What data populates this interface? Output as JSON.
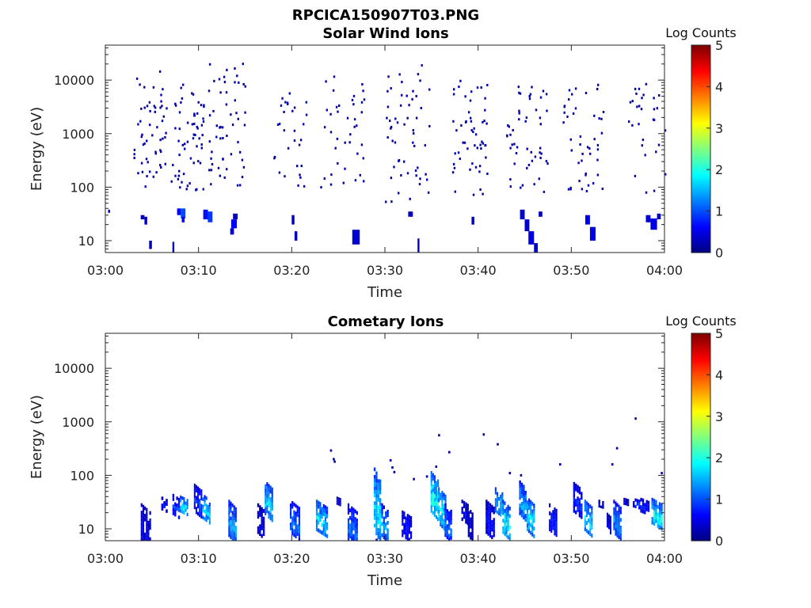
{
  "figure": {
    "title": "RPCICA150907T03.PNG"
  },
  "colormap": {
    "name": "jet",
    "stops": [
      "#00007f",
      "#0000ff",
      "#007fff",
      "#00ffff",
      "#7fff7f",
      "#ffff00",
      "#ff7f00",
      "#ff0000",
      "#7f0000"
    ]
  },
  "chart_data": [
    {
      "type": "heatmap",
      "title": "Solar Wind Ions",
      "xlabel": "Time",
      "ylabel": "Energy (eV)",
      "x_ticks": [
        "03:00",
        "03:10",
        "03:20",
        "03:30",
        "03:40",
        "03:50",
        "04:00"
      ],
      "x_range_minutes": [
        0,
        60
      ],
      "y_scale": "log",
      "y_range": [
        6,
        45000
      ],
      "y_ticks": [
        {
          "value": 10,
          "label": "10"
        },
        {
          "value": 100,
          "label": "100"
        },
        {
          "value": 1000,
          "label": "1000"
        },
        {
          "value": 10000,
          "label": "10000"
        }
      ],
      "colorbar": {
        "label": "Log Counts",
        "range": [
          0,
          5
        ],
        "ticks": [
          "0",
          "1",
          "2",
          "3",
          "4",
          "5"
        ]
      },
      "populations": [
        {
          "t": [
            3.0,
            6.5
          ],
          "e": [
            100,
            15000
          ],
          "n": 55,
          "v": [
            0.1,
            0.3
          ]
        },
        {
          "t": [
            7.0,
            10.5
          ],
          "e": [
            80,
            9000
          ],
          "n": 60,
          "v": [
            0.1,
            0.3
          ]
        },
        {
          "t": [
            11.0,
            15.0
          ],
          "e": [
            100,
            25000
          ],
          "n": 55,
          "v": [
            0.1,
            0.3
          ]
        },
        {
          "t": [
            18.0,
            21.5
          ],
          "e": [
            100,
            6000
          ],
          "n": 30,
          "v": [
            0.1,
            0.3
          ]
        },
        {
          "t": [
            23.0,
            28.0
          ],
          "e": [
            100,
            14000
          ],
          "n": 40,
          "v": [
            0.1,
            0.3
          ]
        },
        {
          "t": [
            30.0,
            35.0
          ],
          "e": [
            50,
            25000
          ],
          "n": 55,
          "v": [
            0.1,
            0.3
          ]
        },
        {
          "t": [
            37.0,
            41.0
          ],
          "e": [
            70,
            10000
          ],
          "n": 55,
          "v": [
            0.1,
            0.3
          ]
        },
        {
          "t": [
            43.0,
            47.5
          ],
          "e": [
            80,
            9000
          ],
          "n": 50,
          "v": [
            0.1,
            0.3
          ]
        },
        {
          "t": [
            49.0,
            53.5
          ],
          "e": [
            80,
            9000
          ],
          "n": 45,
          "v": [
            0.1,
            0.3
          ]
        },
        {
          "t": [
            56.0,
            60.0
          ],
          "e": [
            80,
            9000
          ],
          "n": 30,
          "v": [
            0.1,
            0.3
          ]
        }
      ],
      "cells": [
        {
          "t0": 0.3,
          "t1": 0.5,
          "e0": 33,
          "e1": 38,
          "v": 0.2
        },
        {
          "t0": 3.8,
          "t1": 4.2,
          "e0": 25,
          "e1": 30,
          "v": 0.3
        },
        {
          "t0": 4.2,
          "t1": 4.5,
          "e0": 20,
          "e1": 28,
          "v": 0.4
        },
        {
          "t0": 4.7,
          "t1": 5.0,
          "e0": 7,
          "e1": 10,
          "v": 0.3
        },
        {
          "t0": 7.2,
          "t1": 7.4,
          "e0": 5.5,
          "e1": 9.5,
          "v": 0.3
        },
        {
          "t0": 7.7,
          "t1": 8.1,
          "e0": 30,
          "e1": 40,
          "v": 0.6
        },
        {
          "t0": 8.1,
          "t1": 8.6,
          "e0": 26,
          "e1": 40,
          "v": 1.0
        },
        {
          "t0": 8.2,
          "t1": 8.5,
          "e0": 22,
          "e1": 28,
          "v": 0.5
        },
        {
          "t0": 10.5,
          "t1": 11.0,
          "e0": 25,
          "e1": 38,
          "v": 0.7
        },
        {
          "t0": 11.0,
          "t1": 11.5,
          "e0": 22,
          "e1": 35,
          "v": 0.9
        },
        {
          "t0": 13.4,
          "t1": 13.8,
          "e0": 13,
          "e1": 17,
          "v": 0.4
        },
        {
          "t0": 13.5,
          "t1": 14.1,
          "e0": 17,
          "e1": 25,
          "v": 0.6
        },
        {
          "t0": 13.7,
          "t1": 14.2,
          "e0": 25,
          "e1": 32,
          "v": 0.3
        },
        {
          "t0": 20.0,
          "t1": 20.3,
          "e0": 20,
          "e1": 30,
          "v": 0.3
        },
        {
          "t0": 20.3,
          "t1": 20.6,
          "e0": 10,
          "e1": 15,
          "v": 0.3
        },
        {
          "t0": 26.5,
          "t1": 27.3,
          "e0": 8.5,
          "e1": 16,
          "v": 0.4
        },
        {
          "t0": 32.5,
          "t1": 33.0,
          "e0": 28,
          "e1": 35,
          "v": 0.3
        },
        {
          "t0": 33.5,
          "t1": 33.7,
          "e0": 5.5,
          "e1": 11,
          "v": 0.3
        },
        {
          "t0": 39.3,
          "t1": 39.6,
          "e0": 20,
          "e1": 28,
          "v": 0.3
        },
        {
          "t0": 44.5,
          "t1": 45.0,
          "e0": 25,
          "e1": 38,
          "v": 0.4
        },
        {
          "t0": 45.0,
          "t1": 45.5,
          "e0": 15,
          "e1": 25,
          "v": 0.4
        },
        {
          "t0": 45.4,
          "t1": 46.0,
          "e0": 8.5,
          "e1": 15,
          "v": 0.5
        },
        {
          "t0": 46.0,
          "t1": 46.4,
          "e0": 5.5,
          "e1": 9,
          "v": 0.3
        },
        {
          "t0": 46.5,
          "t1": 46.9,
          "e0": 28,
          "e1": 35,
          "v": 0.3
        },
        {
          "t0": 51.5,
          "t1": 52.0,
          "e0": 20,
          "e1": 30,
          "v": 0.5
        },
        {
          "t0": 52.0,
          "t1": 52.6,
          "e0": 10,
          "e1": 18,
          "v": 0.5
        },
        {
          "t0": 58.0,
          "t1": 58.5,
          "e0": 22,
          "e1": 30,
          "v": 0.4
        },
        {
          "t0": 58.5,
          "t1": 59.2,
          "e0": 16,
          "e1": 26,
          "v": 0.5
        },
        {
          "t0": 59.2,
          "t1": 59.6,
          "e0": 25,
          "e1": 32,
          "v": 0.3
        }
      ]
    },
    {
      "type": "heatmap",
      "title": "Cometary Ions",
      "xlabel": "Time",
      "ylabel": "Energy (eV)",
      "x_ticks": [
        "03:00",
        "03:10",
        "03:20",
        "03:30",
        "03:40",
        "03:50",
        "04:00"
      ],
      "x_range_minutes": [
        0,
        60
      ],
      "y_scale": "log",
      "y_range": [
        6,
        45000
      ],
      "y_ticks": [
        {
          "value": 10,
          "label": "10"
        },
        {
          "value": 100,
          "label": "100"
        },
        {
          "value": 1000,
          "label": "1000"
        },
        {
          "value": 10000,
          "label": "10000"
        }
      ],
      "colorbar": {
        "label": "Log Counts",
        "range": [
          0,
          5
        ],
        "ticks": [
          "0",
          "1",
          "2",
          "3",
          "4",
          "5"
        ]
      },
      "columns": [
        {
          "t": 3.8,
          "w": 1.1,
          "e0": 6,
          "e1": 30,
          "v": 0.5
        },
        {
          "t": 6.0,
          "w": 0.7,
          "e0": 22,
          "e1": 40,
          "v": 0.7
        },
        {
          "t": 7.2,
          "w": 0.8,
          "e0": 18,
          "e1": 45,
          "v": 0.9
        },
        {
          "t": 8.0,
          "w": 0.9,
          "e0": 20,
          "e1": 42,
          "v": 1.8
        },
        {
          "t": 9.5,
          "w": 0.9,
          "e0": 20,
          "e1": 70,
          "v": 0.9
        },
        {
          "t": 10.4,
          "w": 0.9,
          "e0": 15,
          "e1": 45,
          "v": 1.7
        },
        {
          "t": 13.2,
          "w": 0.9,
          "e0": 7,
          "e1": 35,
          "v": 1.4
        },
        {
          "t": 16.3,
          "w": 0.8,
          "e0": 8,
          "e1": 30,
          "v": 0.5
        },
        {
          "t": 17.1,
          "w": 0.9,
          "e0": 18,
          "e1": 80,
          "v": 1.7
        },
        {
          "t": 19.8,
          "w": 1.1,
          "e0": 8,
          "e1": 35,
          "v": 1.2
        },
        {
          "t": 22.6,
          "w": 1.3,
          "e0": 9,
          "e1": 35,
          "v": 1.7
        },
        {
          "t": 24.8,
          "w": 0.5,
          "e0": 28,
          "e1": 40,
          "v": 0.6
        },
        {
          "t": 26.0,
          "w": 1.1,
          "e0": 6,
          "e1": 30,
          "v": 1.2
        },
        {
          "t": 28.8,
          "w": 0.8,
          "e0": 9,
          "e1": 140,
          "v": 1.8
        },
        {
          "t": 29.6,
          "w": 0.8,
          "e0": 7,
          "e1": 30,
          "v": 1.4
        },
        {
          "t": 31.8,
          "w": 1.1,
          "e0": 7,
          "e1": 22,
          "v": 0.7
        },
        {
          "t": 34.9,
          "w": 0.9,
          "e0": 20,
          "e1": 120,
          "v": 2.0
        },
        {
          "t": 35.7,
          "w": 0.9,
          "e0": 12,
          "e1": 60,
          "v": 1.8
        },
        {
          "t": 36.4,
          "w": 0.8,
          "e0": 7,
          "e1": 30,
          "v": 1.2
        },
        {
          "t": 38.2,
          "w": 0.8,
          "e0": 14,
          "e1": 35,
          "v": 0.5
        },
        {
          "t": 38.9,
          "w": 0.6,
          "e0": 7,
          "e1": 25,
          "v": 0.4
        },
        {
          "t": 40.8,
          "w": 1.0,
          "e0": 8,
          "e1": 35,
          "v": 0.7
        },
        {
          "t": 41.8,
          "w": 0.9,
          "e0": 20,
          "e1": 60,
          "v": 1.7
        },
        {
          "t": 42.6,
          "w": 0.9,
          "e0": 8,
          "e1": 35,
          "v": 1.9
        },
        {
          "t": 44.4,
          "w": 0.8,
          "e0": 18,
          "e1": 80,
          "v": 1.5
        },
        {
          "t": 45.2,
          "w": 0.9,
          "e0": 9,
          "e1": 40,
          "v": 1.8
        },
        {
          "t": 47.6,
          "w": 0.9,
          "e0": 9,
          "e1": 30,
          "v": 0.8
        },
        {
          "t": 50.2,
          "w": 1.0,
          "e0": 20,
          "e1": 75,
          "v": 0.8
        },
        {
          "t": 51.4,
          "w": 0.9,
          "e0": 9,
          "e1": 35,
          "v": 1.8
        },
        {
          "t": 52.9,
          "w": 0.6,
          "e0": 25,
          "e1": 35,
          "v": 0.4
        },
        {
          "t": 53.8,
          "w": 0.5,
          "e0": 9,
          "e1": 20,
          "v": 0.5
        },
        {
          "t": 54.5,
          "w": 0.9,
          "e0": 8,
          "e1": 35,
          "v": 1.3
        },
        {
          "t": 55.6,
          "w": 0.6,
          "e0": 28,
          "e1": 38,
          "v": 0.5
        },
        {
          "t": 56.6,
          "w": 0.8,
          "e0": 25,
          "e1": 38,
          "v": 0.9
        },
        {
          "t": 57.4,
          "w": 1.0,
          "e0": 20,
          "e1": 38,
          "v": 0.7
        },
        {
          "t": 58.6,
          "w": 1.2,
          "e0": 12,
          "e1": 38,
          "v": 2.0
        }
      ],
      "dots": [
        {
          "t": 24.1,
          "e": 290,
          "v": 0.3
        },
        {
          "t": 24.5,
          "e": 180,
          "v": 0.2
        },
        {
          "t": 24.4,
          "e": 200,
          "v": 0.2
        },
        {
          "t": 30.5,
          "e": 190,
          "v": 0.2
        },
        {
          "t": 30.7,
          "e": 140,
          "v": 0.2
        },
        {
          "t": 30.9,
          "e": 115,
          "v": 0.2
        },
        {
          "t": 33.0,
          "e": 85,
          "v": 0.2
        },
        {
          "t": 34.4,
          "e": 95,
          "v": 0.2
        },
        {
          "t": 35.4,
          "e": 145,
          "v": 0.2
        },
        {
          "t": 35.7,
          "e": 560,
          "v": 0.2
        },
        {
          "t": 36.8,
          "e": 270,
          "v": 0.2
        },
        {
          "t": 40.5,
          "e": 580,
          "v": 0.2
        },
        {
          "t": 42.0,
          "e": 380,
          "v": 0.2
        },
        {
          "t": 43.3,
          "e": 110,
          "v": 0.2
        },
        {
          "t": 44.5,
          "e": 100,
          "v": 0.2
        },
        {
          "t": 48.7,
          "e": 160,
          "v": 0.2
        },
        {
          "t": 54.3,
          "e": 160,
          "v": 0.2
        },
        {
          "t": 54.8,
          "e": 320,
          "v": 0.2
        },
        {
          "t": 56.8,
          "e": 1150,
          "v": 0.2
        },
        {
          "t": 59.6,
          "e": 110,
          "v": 0.2
        },
        {
          "t": 29.0,
          "e": 6.2,
          "v": 0.2
        }
      ]
    }
  ]
}
